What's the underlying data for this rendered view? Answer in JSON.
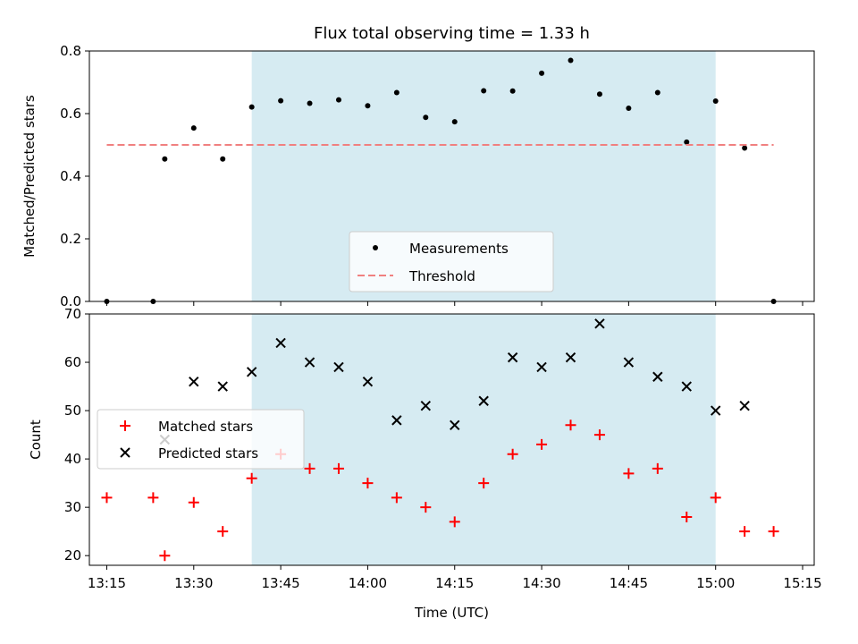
{
  "chart_data": [
    {
      "type": "scatter",
      "title": "Flux total observing time = 1.33 h",
      "xlabel": "",
      "ylabel": "Matched/Predicted stars",
      "xlim": [
        "13:12",
        "15:17"
      ],
      "ylim": [
        0,
        0.8
      ],
      "yticks": [
        0.0,
        0.2,
        0.4,
        0.6,
        0.8
      ],
      "ytick_labels": [
        "0.0",
        "0.2",
        "0.4",
        "0.6",
        "0.8"
      ],
      "xticks": [
        "13:15",
        "13:30",
        "13:45",
        "14:00",
        "14:15",
        "14:30",
        "14:45",
        "15:00",
        "15:15"
      ],
      "shaded_span": [
        "13:40",
        "15:00"
      ],
      "legend_position": "lower-center",
      "series": [
        {
          "name": "Measurements",
          "marker": "dot",
          "color": "#000000",
          "x": [
            "13:15",
            "13:23",
            "13:25",
            "13:30",
            "13:35",
            "13:40",
            "13:45",
            "13:50",
            "13:55",
            "14:00",
            "14:05",
            "14:10",
            "14:15",
            "14:20",
            "14:25",
            "14:30",
            "14:35",
            "14:40",
            "14:45",
            "14:50",
            "14:55",
            "15:00",
            "15:05",
            "15:10"
          ],
          "y": [
            0.0,
            0.0,
            0.455,
            0.554,
            0.455,
            0.621,
            0.641,
            0.633,
            0.644,
            0.625,
            0.667,
            0.588,
            0.574,
            0.673,
            0.672,
            0.729,
            0.77,
            0.662,
            0.617,
            0.667,
            0.509,
            0.64,
            0.49,
            0.0
          ]
        },
        {
          "name": "Threshold",
          "style": "dashed",
          "color": "#f08080",
          "x": [
            "13:15",
            "15:10"
          ],
          "y": [
            0.5,
            0.5
          ]
        }
      ]
    },
    {
      "type": "scatter",
      "title": "",
      "xlabel": "Time (UTC)",
      "ylabel": "Count",
      "xlim": [
        "13:12",
        "15:17"
      ],
      "ylim": [
        18,
        70
      ],
      "yticks": [
        20,
        30,
        40,
        50,
        60,
        70
      ],
      "ytick_labels": [
        "20",
        "30",
        "40",
        "50",
        "60",
        "70"
      ],
      "xticks": [
        "13:15",
        "13:30",
        "13:45",
        "14:00",
        "14:15",
        "14:30",
        "14:45",
        "15:00",
        "15:15"
      ],
      "shaded_span": [
        "13:40",
        "15:00"
      ],
      "legend_position": "center-left",
      "series": [
        {
          "name": "Matched stars",
          "marker": "plus",
          "color": "#ff0000",
          "x": [
            "13:15",
            "13:23",
            "13:25",
            "13:30",
            "13:35",
            "13:40",
            "13:45",
            "13:50",
            "13:55",
            "14:00",
            "14:05",
            "14:10",
            "14:15",
            "14:20",
            "14:25",
            "14:30",
            "14:35",
            "14:40",
            "14:45",
            "14:50",
            "14:55",
            "15:00",
            "15:05",
            "15:10"
          ],
          "y": [
            32,
            32,
            20,
            31,
            25,
            36,
            41,
            38,
            38,
            35,
            32,
            30,
            27,
            35,
            41,
            43,
            47,
            45,
            37,
            38,
            28,
            32,
            25,
            25
          ]
        },
        {
          "name": "Predicted stars",
          "marker": "x",
          "color": "#000000",
          "x": [
            "13:25",
            "13:30",
            "13:35",
            "13:40",
            "13:45",
            "13:50",
            "13:55",
            "14:00",
            "14:05",
            "14:10",
            "14:15",
            "14:20",
            "14:25",
            "14:30",
            "14:35",
            "14:40",
            "14:45",
            "14:50",
            "14:55",
            "15:00",
            "15:05"
          ],
          "y": [
            44,
            56,
            55,
            58,
            64,
            60,
            59,
            56,
            48,
            51,
            47,
            52,
            61,
            59,
            61,
            68,
            60,
            57,
            55,
            50,
            51
          ]
        }
      ]
    }
  ],
  "colors": {
    "shade": "#add8e6",
    "axis": "#000000"
  }
}
